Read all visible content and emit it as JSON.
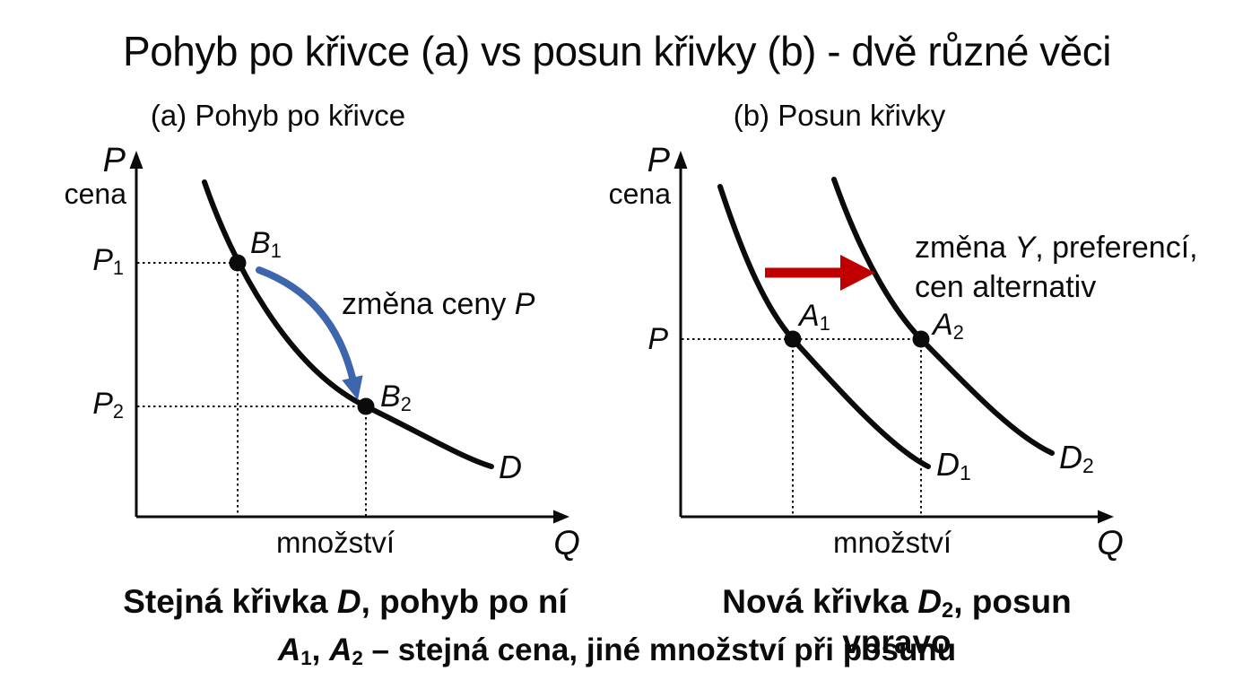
{
  "title": "Pohyb po křivce (a) vs posun křivky (b) - dvě různé věci",
  "panel_a": {
    "subtitle": "(a) Pohyb po křivce",
    "axis": {
      "p_letter": "P",
      "p_word": "cena",
      "q_letter": "Q",
      "q_word": "množství"
    },
    "labels": {
      "p1": [
        {
          "t": "P",
          "i": true
        },
        {
          "t": "1",
          "sub": true
        }
      ],
      "p2": [
        {
          "t": "P",
          "i": true
        },
        {
          "t": "2",
          "sub": true
        }
      ],
      "b1": [
        {
          "t": "B",
          "i": true
        },
        {
          "t": "1",
          "sub": true
        }
      ],
      "b2": [
        {
          "t": "B",
          "i": true
        },
        {
          "t": "2",
          "sub": true
        }
      ],
      "d": [
        {
          "t": "D",
          "i": true
        }
      ],
      "movement_note": [
        {
          "t": "změna ceny "
        },
        {
          "t": "P",
          "i": true
        }
      ]
    },
    "caption": [
      {
        "t": "Stejná křivka "
      },
      {
        "t": "D",
        "i": true
      },
      {
        "t": ", pohyb po ní"
      }
    ]
  },
  "panel_b": {
    "subtitle": "(b) Posun křivky",
    "axis": {
      "p_letter": "P",
      "p_word": "cena",
      "q_letter": "Q",
      "q_word": "množství"
    },
    "labels": {
      "p": [
        {
          "t": "P",
          "i": true
        }
      ],
      "a1": [
        {
          "t": "A",
          "i": true
        },
        {
          "t": "1",
          "sub": true
        }
      ],
      "a2": [
        {
          "t": "A",
          "i": true
        },
        {
          "t": "2",
          "sub": true
        }
      ],
      "d1": [
        {
          "t": "D",
          "i": true
        },
        {
          "t": "1",
          "sub": true
        }
      ],
      "d2": [
        {
          "t": "D",
          "i": true
        },
        {
          "t": "2",
          "sub": true
        }
      ],
      "shift_note_line1": [
        {
          "t": "změna "
        },
        {
          "t": "Y",
          "i": true
        },
        {
          "t": ", preferencí,"
        }
      ],
      "shift_note_line2": [
        {
          "t": "cen alternativ"
        }
      ]
    },
    "caption": [
      {
        "t": "Nová křivka "
      },
      {
        "t": "D",
        "i": true
      },
      {
        "t": "2",
        "sub": true
      },
      {
        "t": ", posun vpravo"
      }
    ]
  },
  "footer": [
    {
      "t": "A",
      "i": true
    },
    {
      "t": "1",
      "sub": true
    },
    {
      "t": ", "
    },
    {
      "t": "A",
      "i": true
    },
    {
      "t": "2",
      "sub": true
    },
    {
      "t": " – stejná cena, jiné množství při posunu"
    }
  ],
  "colors": {
    "ink": "#0b0b0b",
    "movement_arrow_blue": "#3D66AE",
    "shift_arrow_red": "#C00000"
  }
}
